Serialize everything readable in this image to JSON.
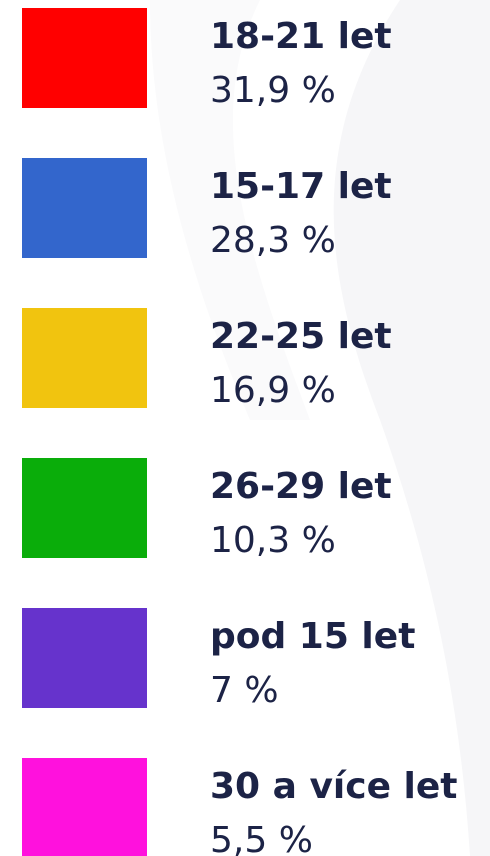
{
  "items": [
    {
      "label": "18-21 let",
      "value": "31,9 %",
      "color": "#ff0000"
    },
    {
      "label": "15-17 let",
      "value": "28,3 %",
      "color": "#3366cc"
    },
    {
      "label": "22-25 let",
      "value": "16,9 %",
      "color": "#f1c40f"
    },
    {
      "label": "26-29 let",
      "value": "10,3 %",
      "color": "#0aad0a"
    },
    {
      "label": "pod 15 let",
      "value": "7 %",
      "color": "#6633cc"
    },
    {
      "label": "30 a více let",
      "value": "5,5 %",
      "color": "#ff11dd"
    }
  ]
}
